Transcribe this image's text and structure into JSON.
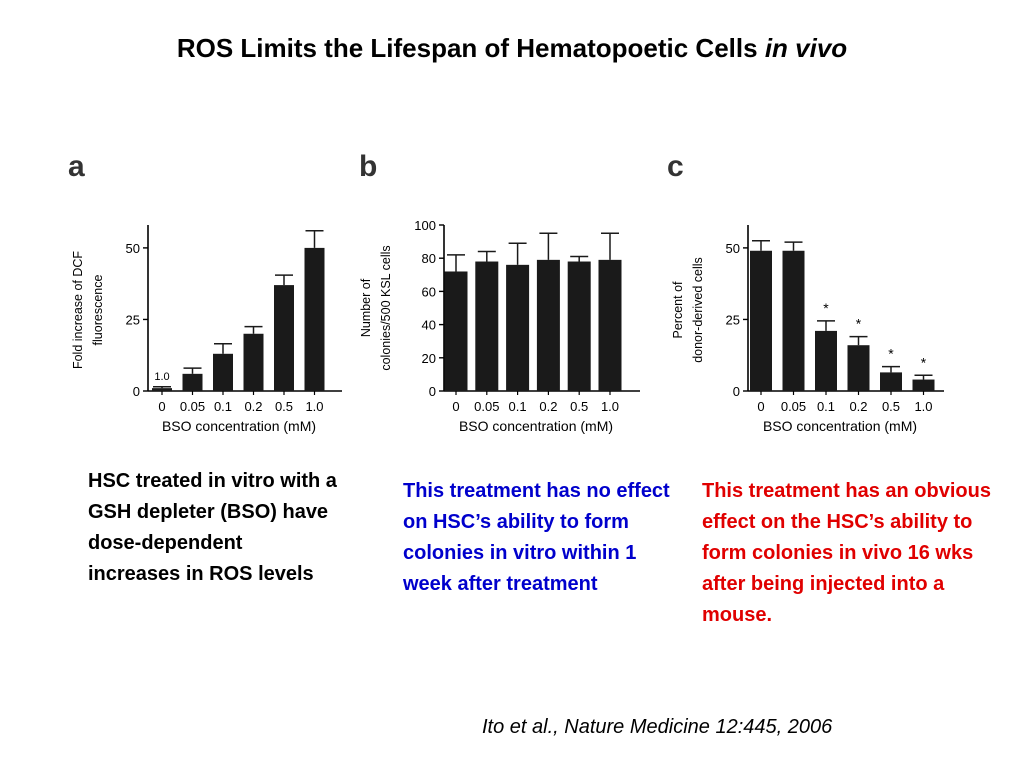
{
  "slide": {
    "title_main": "ROS Limits the Lifespan of Hematopoetic Cells",
    "title_em": "in vivo",
    "citation": "Ito et al., Nature Medicine 12:445, 2006",
    "captions": [
      {
        "text": "HSC treated in vitro with a GSH depleter (BSO) have dose-dependent increases in ROS levels",
        "color": "#000000"
      },
      {
        "text": "This treatment has no effect on HSC’s ability to form colonies in vitro within 1 week after treatment",
        "color": "#0000cc"
      },
      {
        "text": "This treatment has an obvious effect on the HSC’s ability to form colonies in vivo 16 wks after being injected into a mouse.",
        "color": "#e00000"
      }
    ]
  },
  "chart_data": [
    {
      "panel": "a",
      "type": "bar",
      "categories": [
        "0",
        "0.05",
        "0.1",
        "0.2",
        "0.5",
        "1.0"
      ],
      "values": [
        1.0,
        6,
        13,
        20,
        37,
        50
      ],
      "errors": [
        0.5,
        2,
        3.5,
        2.5,
        3.5,
        6
      ],
      "xlabel": "BSO concentration (mM)",
      "ylabel": [
        "Fold increase of DCF",
        "fluorescence"
      ],
      "ylim": [
        0,
        58
      ],
      "yticks": [
        "0",
        "25",
        "50"
      ],
      "annotations": [
        {
          "text": "1.0",
          "category": "0"
        }
      ]
    },
    {
      "panel": "b",
      "type": "bar",
      "categories": [
        "0",
        "0.05",
        "0.1",
        "0.2",
        "0.5",
        "1.0"
      ],
      "values": [
        72,
        78,
        76,
        79,
        78,
        79
      ],
      "errors": [
        10,
        6,
        13,
        16,
        3,
        16
      ],
      "xlabel": "BSO concentration (mM)",
      "ylabel": [
        "Number of",
        "colonies/500 KSL cells"
      ],
      "ylim": [
        0,
        100
      ],
      "yticks": [
        "0",
        "20",
        "40",
        "60",
        "80",
        "100"
      ]
    },
    {
      "panel": "c",
      "type": "bar",
      "categories": [
        "0",
        "0.05",
        "0.1",
        "0.2",
        "0.5",
        "1.0"
      ],
      "values": [
        49,
        49,
        21,
        16,
        6.5,
        4
      ],
      "errors": [
        3.5,
        3,
        3.5,
        3,
        2,
        1.5
      ],
      "significance": [
        "",
        "",
        "*",
        "*",
        "*",
        "*"
      ],
      "xlabel": "BSO concentration (mM)",
      "ylabel": [
        "Percent of",
        "donor-derived cells"
      ],
      "ylim": [
        0,
        58
      ],
      "yticks": [
        "0",
        "25",
        "50"
      ]
    }
  ]
}
